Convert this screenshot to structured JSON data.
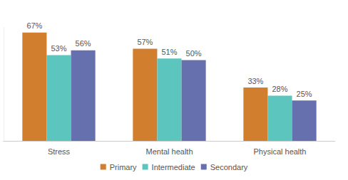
{
  "chart_data": {
    "type": "bar",
    "categories": [
      "Stress",
      "Mental health",
      "Physical health"
    ],
    "series": [
      {
        "name": "Primary",
        "color": "#d17f2f",
        "values": [
          67,
          57,
          33
        ],
        "value_labels": [
          "67%",
          "57%",
          "33%"
        ]
      },
      {
        "name": "Intermediate",
        "color": "#5bc5be",
        "values": [
          53,
          51,
          28
        ],
        "value_labels": [
          "53%",
          "51%",
          "28%"
        ]
      },
      {
        "name": "Secondary",
        "color": "#6670ae",
        "values": [
          56,
          50,
          25
        ],
        "value_labels": [
          "56%",
          "50%",
          "25%"
        ]
      }
    ],
    "ylim": [
      0,
      70
    ],
    "grid": false,
    "legend": "bottom",
    "data_labels": true,
    "tick_labels": "x"
  }
}
